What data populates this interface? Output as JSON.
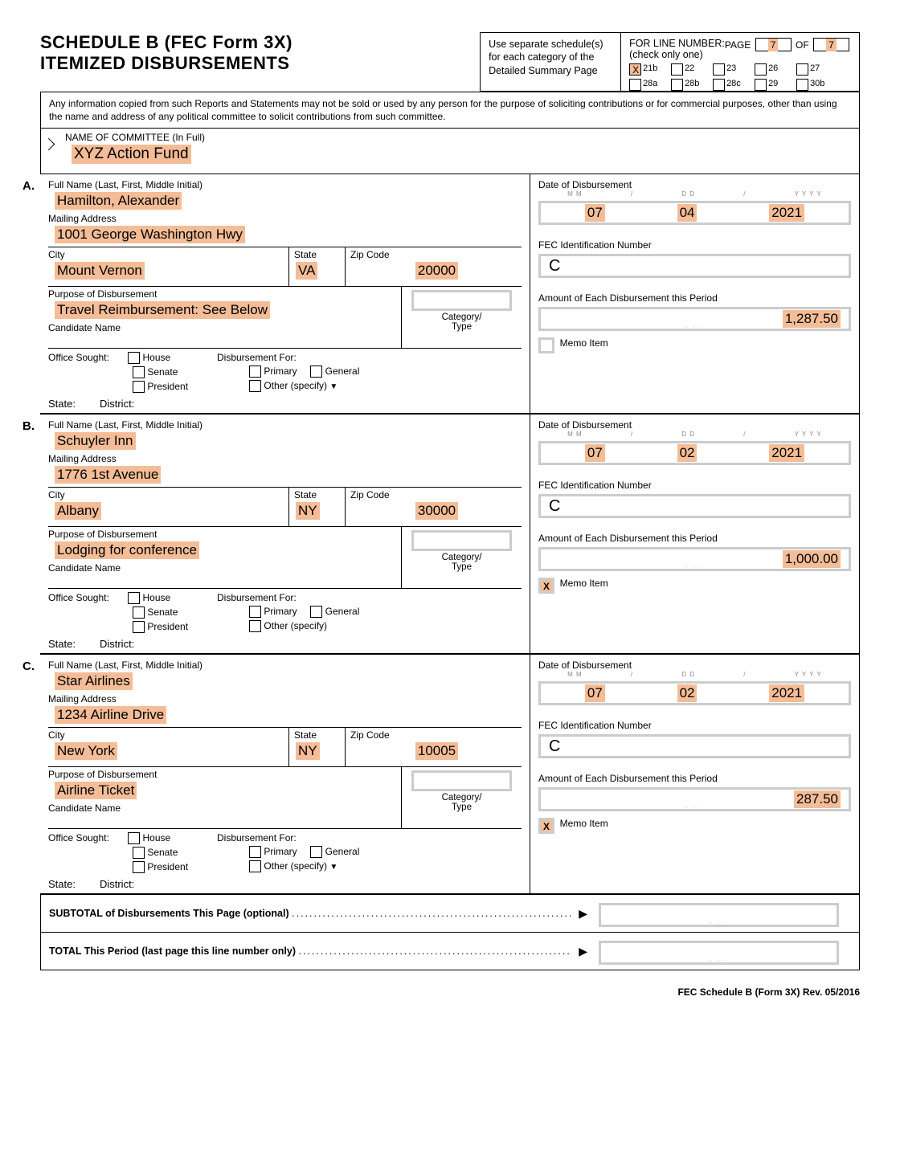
{
  "form": {
    "title_line1": "SCHEDULE B   (FEC Form 3X)",
    "title_line2": "ITEMIZED DISBURSEMENTS",
    "instr": "Use separate schedule(s) for each category of the Detailed Summary Page",
    "line_hdr": "FOR LINE NUMBER:",
    "line_sub": "(check only one)",
    "page_lbl": "PAGE",
    "of_lbl": "OF",
    "page_no": "7",
    "page_total": "7"
  },
  "line_numbers": {
    "row1": [
      "21b",
      "22",
      "23",
      "26",
      "27"
    ],
    "row2": [
      "28a",
      "28b",
      "28c",
      "29",
      "30b"
    ],
    "checked": "21b"
  },
  "notice": "Any information copied from such Reports and Statements may not be sold or used by any person for the purpose of soliciting contributions or for commercial purposes, other than using the name and address of any political committee to solicit contributions from such committee.",
  "committee": {
    "label": "NAME OF COMMITTEE (In Full)",
    "name": "XYZ Action Fund"
  },
  "labels": {
    "full_name": "Full Name (Last, First, Middle Initial)",
    "mailing": "Mailing Address",
    "city": "City",
    "state": "State",
    "zip": "Zip Code",
    "purpose": "Purpose of Disbursement",
    "candidate": "Candidate Name",
    "category": "Category/\nType",
    "office": "Office Sought:",
    "house": "House",
    "senate": "Senate",
    "president": "President",
    "state_lbl": "State:",
    "district": "District:",
    "disb_for": "Disbursement For:",
    "primary": "Primary",
    "general": "General",
    "other": "Other (specify)",
    "date": "Date of Disbursement",
    "fec_id": "FEC Identification Number",
    "fec_lead": "C",
    "amount": "Amount of Each Disbursement this Period",
    "memo": "Memo Item",
    "date_hdr_m": "M   M",
    "date_hdr_d": "D   D",
    "date_hdr_y": "Y   Y   Y   Y",
    "subtotal": "SUBTOTAL of Disbursements This Page (optional)",
    "total": "TOTAL This Period (last page this line number only)",
    "footer": "FEC Schedule B (Form 3X) Rev. 05/2016"
  },
  "entries": [
    {
      "letter": "A.",
      "name": "Hamilton, Alexander",
      "address": "1001 George Washington Hwy",
      "city": "Mount Vernon",
      "state": "VA",
      "zip": "20000",
      "purpose": "Travel Reimbursement: See Below",
      "date_m": "07",
      "date_d": "04",
      "date_y": "2021",
      "amount": "1,287.50",
      "memo_checked": false,
      "show_other_chev": true
    },
    {
      "letter": "B.",
      "name": "Schuyler Inn",
      "address": "1776 1st Avenue",
      "city": "Albany",
      "state": "NY",
      "zip": "30000",
      "purpose": "Lodging for conference",
      "date_m": "07",
      "date_d": "02",
      "date_y": "2021",
      "amount": "1,000.00",
      "memo_checked": true,
      "show_other_chev": false
    },
    {
      "letter": "C.",
      "name": "Star Airlines",
      "address": "1234 Airline Drive",
      "city": "New York",
      "state": "NY",
      "zip": "10005",
      "purpose": "Airline Ticket",
      "date_m": "07",
      "date_d": "02",
      "date_y": "2021",
      "amount": "287.50",
      "memo_checked": true,
      "show_other_chev": true
    }
  ],
  "colors": {
    "highlight": "#f4bd97",
    "box_border": "#cccccc"
  }
}
